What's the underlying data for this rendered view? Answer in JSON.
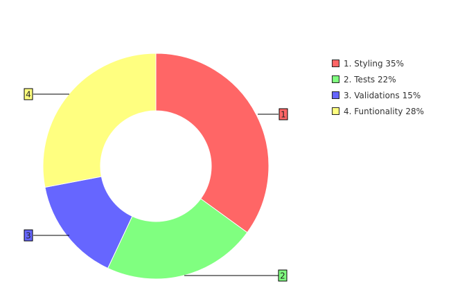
{
  "chart_data": {
    "type": "pie",
    "style": "donut",
    "slices": [
      {
        "label": "1",
        "name": "Styling",
        "value": 35,
        "legend": "1. Styling 35%",
        "color": "#ff6666"
      },
      {
        "label": "2",
        "name": "Tests",
        "value": 22,
        "legend": "2. Tests 22%",
        "color": "#80ff80"
      },
      {
        "label": "3",
        "name": "Validations",
        "value": 15,
        "legend": "3. Validations 15%",
        "color": "#6666ff"
      },
      {
        "label": "4",
        "name": "Funtionality",
        "value": 28,
        "legend": "4. Funtionality 28%",
        "color": "#ffff80"
      }
    ],
    "legend_position": "right"
  }
}
